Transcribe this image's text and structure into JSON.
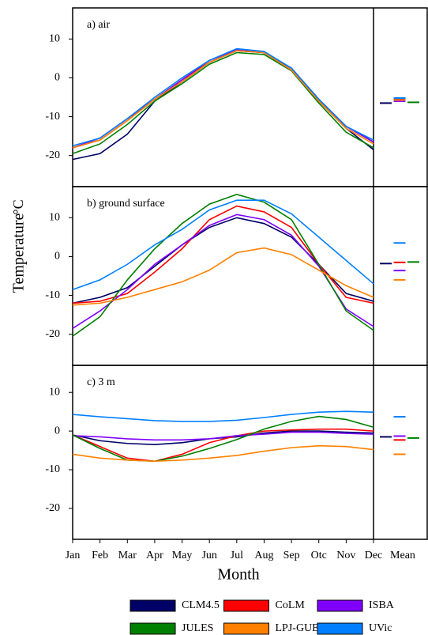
{
  "x_label": "Month",
  "y_label": "Temperature",
  "y_unit": "°C",
  "mean_label": "Mean",
  "chart_data": [
    {
      "type": "line",
      "title": "a) air",
      "ylim": [
        -28,
        18
      ],
      "yticks": [
        -20,
        -10,
        0,
        10
      ],
      "series": [
        {
          "name": "CLM4.5",
          "color": "#000066",
          "values": [
            -21,
            -19.5,
            -14.5,
            -6,
            -1,
            4,
            7,
            6.5,
            2,
            -6,
            -13,
            -18.5
          ],
          "mean": -6.5
        },
        {
          "name": "CoLM",
          "color": "#ff0000",
          "values": [
            -18,
            -16,
            -11,
            -5.5,
            -0.5,
            4,
            7,
            6.5,
            2,
            -6,
            -12.5,
            -16.5
          ],
          "mean": -5.5
        },
        {
          "name": "ISBA",
          "color": "#8000ff",
          "values": [
            -18,
            -15.5,
            -10.5,
            -5.5,
            -0.5,
            4.5,
            7.2,
            6.5,
            2.5,
            -5.5,
            -12.5,
            -16.5
          ],
          "mean": -6
        },
        {
          "name": "JULES",
          "color": "#008000",
          "values": [
            -19.5,
            -17,
            -12,
            -6,
            -1.5,
            3.5,
            6.5,
            6,
            1.8,
            -6.5,
            -14,
            -18
          ],
          "mean": -6.3
        },
        {
          "name": "LPJ-GUESS",
          "color": "#ff8000",
          "values": [
            -18,
            -16,
            -11,
            -5.5,
            -1,
            4,
            7,
            6.5,
            2,
            -6,
            -13,
            -17
          ],
          "mean": -5.7
        },
        {
          "name": "UVic",
          "color": "#0080ff",
          "values": [
            -17.5,
            -15.5,
            -10.5,
            -5,
            0,
            4.5,
            7.5,
            6.8,
            2.5,
            -5.5,
            -12.5,
            -16
          ],
          "mean": -5.2
        }
      ]
    },
    {
      "type": "line",
      "title": "b) ground surface",
      "ylim": [
        -28,
        18
      ],
      "yticks": [
        -20,
        -10,
        0,
        10
      ],
      "series": [
        {
          "name": "CLM4.5",
          "color": "#000066",
          "values": [
            -12,
            -10.5,
            -8,
            -2.5,
            3,
            7.5,
            10,
            8.5,
            5,
            -2,
            -9.5,
            -11.5
          ],
          "mean": -1.8
        },
        {
          "name": "CoLM",
          "color": "#ff0000",
          "values": [
            -12,
            -11.5,
            -9.5,
            -4,
            2,
            9.5,
            13,
            11.5,
            7.5,
            -2,
            -10.5,
            -12
          ],
          "mean": -1.5
        },
        {
          "name": "ISBA",
          "color": "#8000ff",
          "values": [
            -18.5,
            -14,
            -8.5,
            -2,
            3,
            8,
            10.8,
            9.5,
            5.5,
            -2.5,
            -13.5,
            -18
          ],
          "mean": -3.6
        },
        {
          "name": "JULES",
          "color": "#008000",
          "values": [
            -20.5,
            -15.5,
            -6,
            2,
            8.5,
            13.5,
            16,
            14,
            9.5,
            -2,
            -14,
            -19
          ],
          "mean": -1.4
        },
        {
          "name": "LPJ-GUESS",
          "color": "#ff8000",
          "values": [
            -12.5,
            -12,
            -10.5,
            -8.5,
            -6.5,
            -3.5,
            1,
            2.2,
            0.5,
            -3.5,
            -7.5,
            -10.5
          ],
          "mean": -6
        },
        {
          "name": "UVic",
          "color": "#0080ff",
          "values": [
            -8.5,
            -6,
            -2,
            3,
            7,
            12,
            14.5,
            14.5,
            11,
            5,
            -1,
            -7
          ],
          "mean": 3.5
        }
      ]
    },
    {
      "type": "line",
      "title": "c) 3 m",
      "ylim": [
        -28,
        17
      ],
      "yticks": [
        -20,
        -10,
        0,
        10
      ],
      "categories": [
        "Jan",
        "Feb",
        "Mar",
        "Apr",
        "May",
        "Jun",
        "Jul",
        "Aug",
        "Sep",
        "Otc",
        "Nov",
        "Dec"
      ],
      "series": [
        {
          "name": "CLM4.5",
          "color": "#000066",
          "values": [
            -1,
            -2.5,
            -3.2,
            -3.5,
            -3,
            -2,
            -1.5,
            -0.5,
            0,
            0,
            -0.3,
            -0.5
          ],
          "mean": -1.5
        },
        {
          "name": "CoLM",
          "color": "#ff0000",
          "values": [
            -1,
            -4,
            -7,
            -7.8,
            -6,
            -3,
            -1.2,
            0,
            0.3,
            0.5,
            0.5,
            0
          ],
          "mean": -2.3
        },
        {
          "name": "ISBA",
          "color": "#8000ff",
          "values": [
            -1.2,
            -1.5,
            -2,
            -2.3,
            -2.3,
            -2,
            -1.2,
            -0.8,
            -0.3,
            -0.3,
            -0.6,
            -0.8
          ],
          "mean": -1.3
        },
        {
          "name": "JULES",
          "color": "#008000",
          "values": [
            -1,
            -4.5,
            -7.5,
            -7.8,
            -6.5,
            -4.5,
            -2.2,
            0.5,
            2.5,
            3.8,
            3,
            1
          ],
          "mean": -1.8
        },
        {
          "name": "LPJ-GUESS",
          "color": "#ff8000",
          "values": [
            -6,
            -7,
            -7.5,
            -7.8,
            -7.5,
            -7,
            -6.3,
            -5.2,
            -4.3,
            -3.8,
            -4,
            -4.8
          ],
          "mean": -6
        },
        {
          "name": "UVic",
          "color": "#0080ff",
          "values": [
            4.3,
            3.7,
            3.2,
            2.7,
            2.5,
            2.5,
            2.8,
            3.5,
            4.3,
            4.9,
            5.1,
            4.9
          ],
          "mean": 3.7
        }
      ]
    }
  ]
}
